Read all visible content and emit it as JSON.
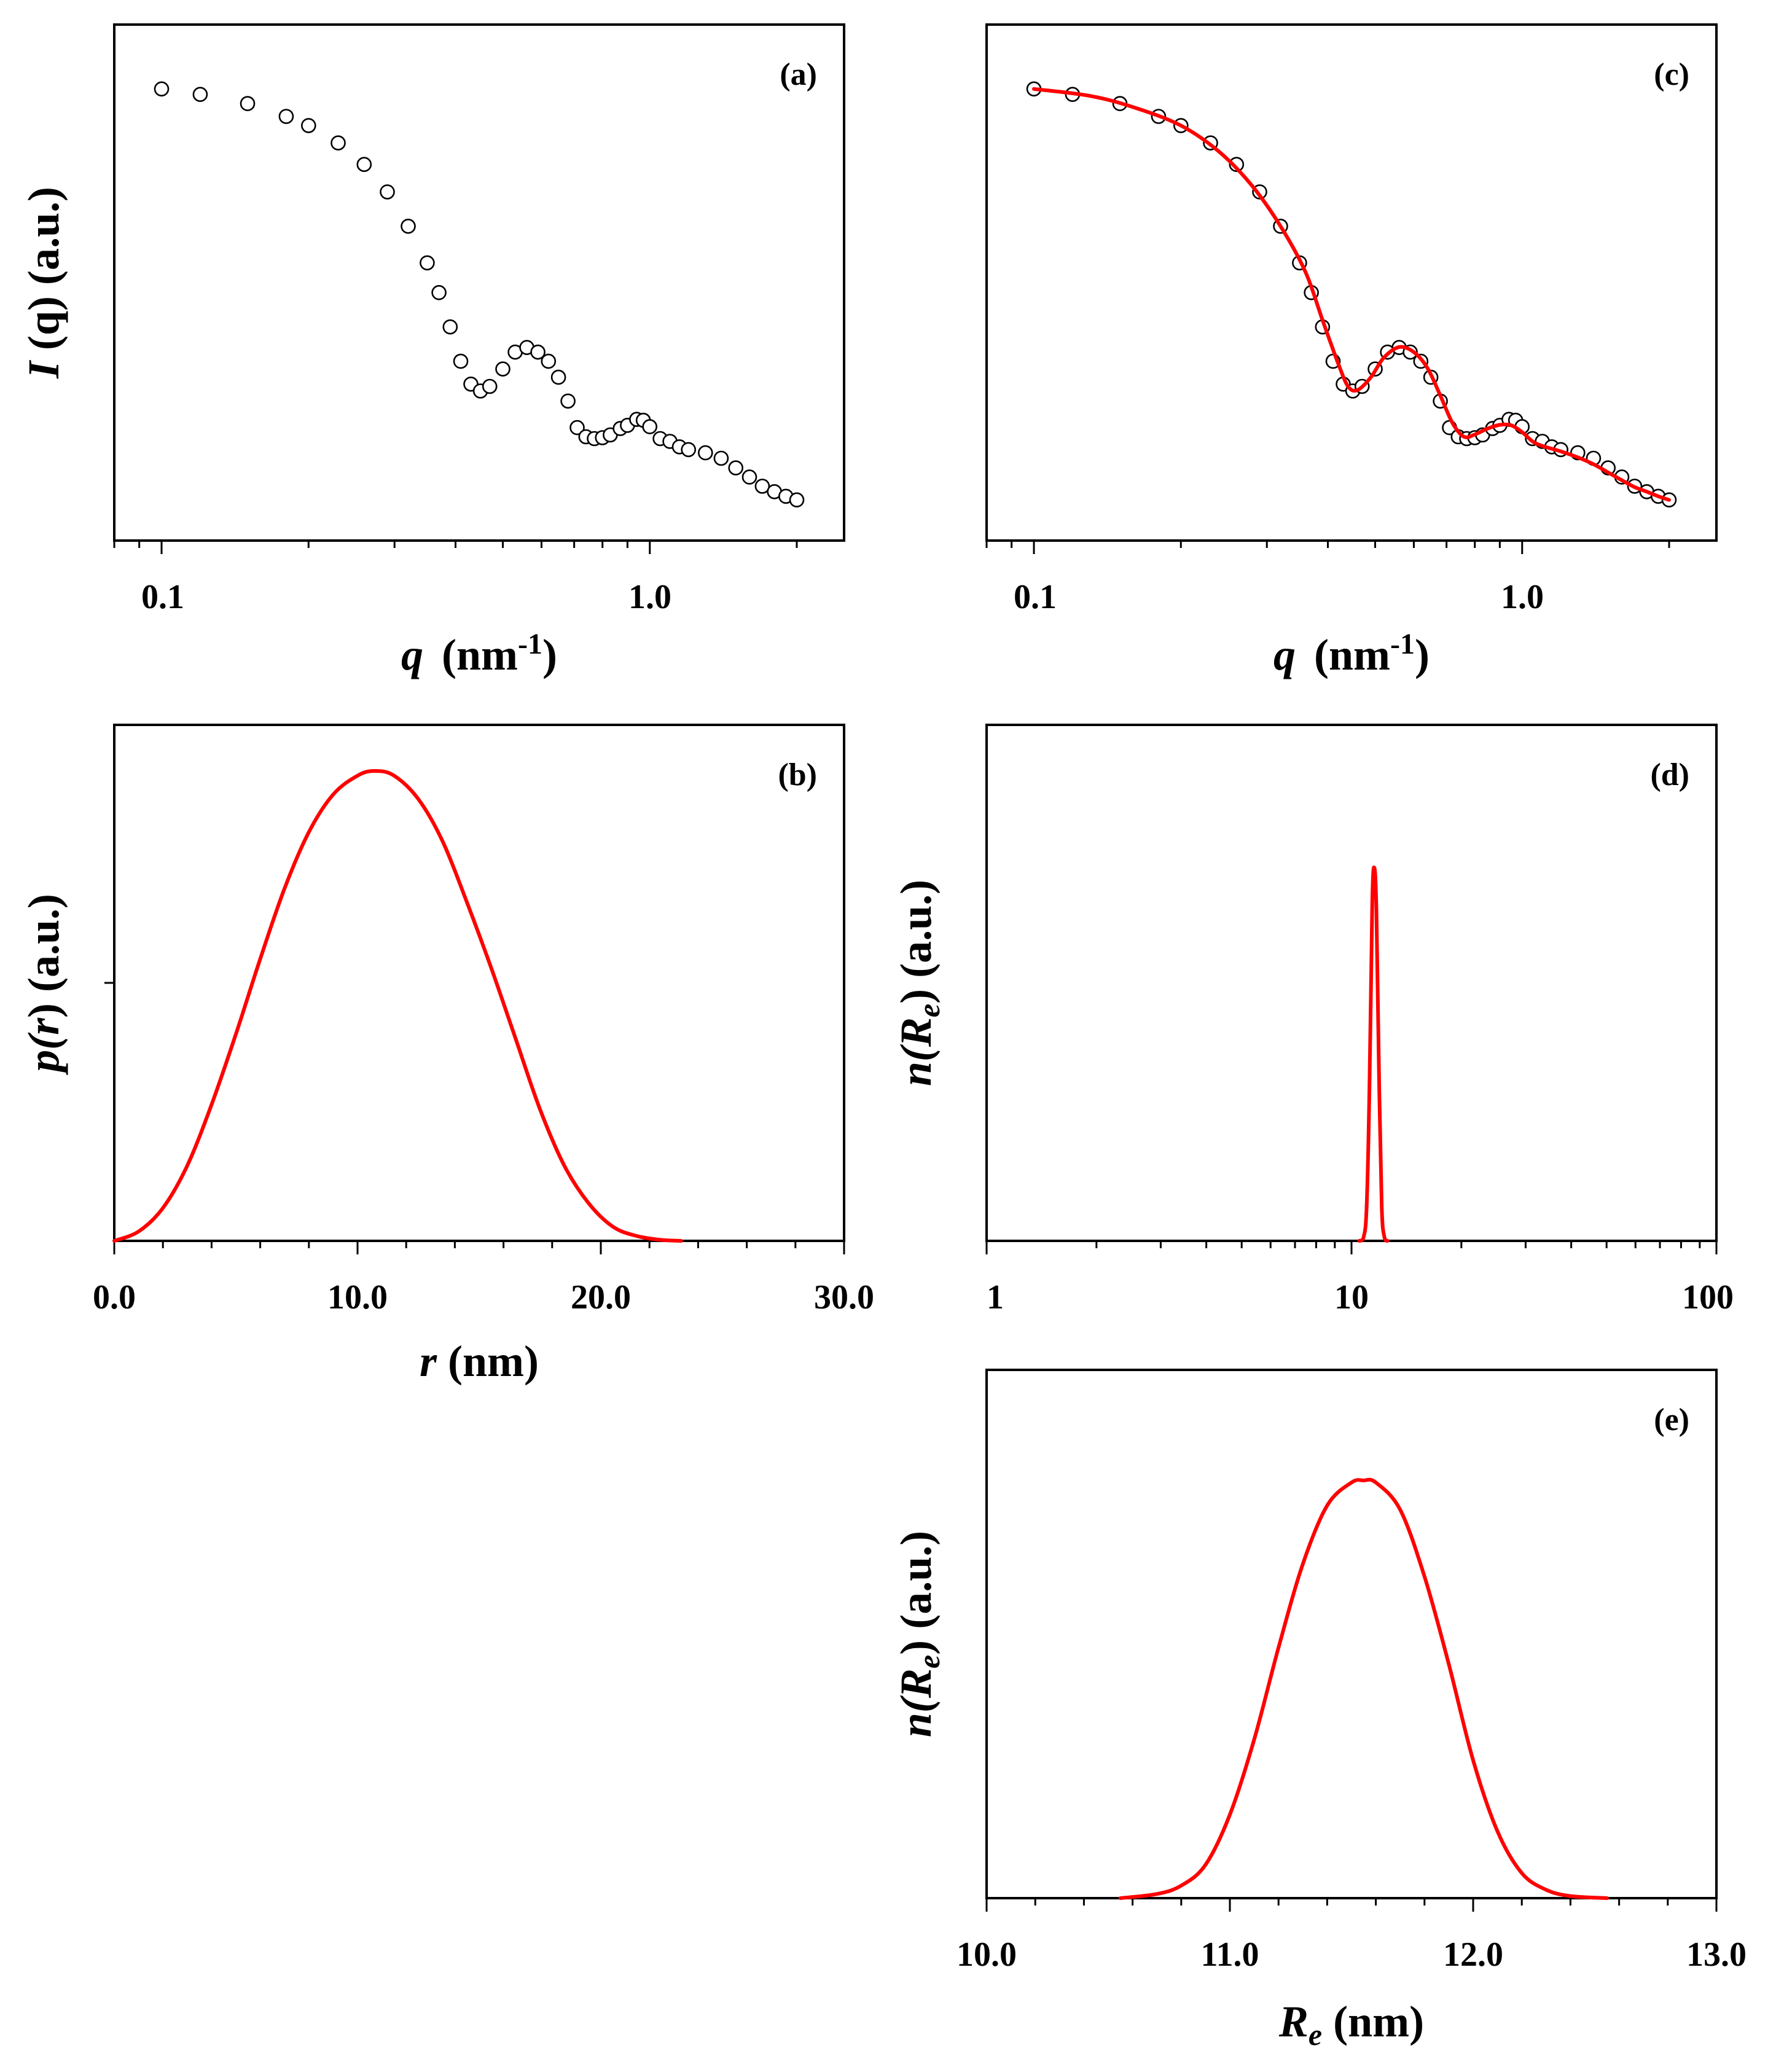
{
  "chart_data": [
    {
      "panel": "(a)",
      "type": "scatter",
      "x_scale": "log",
      "xlim": [
        0.08,
        2.5
      ],
      "ylim": [
        0,
        1
      ],
      "x_ticks_major": [
        0.1,
        1.0
      ],
      "x_tick_labels": [
        "0.1",
        "1.0"
      ],
      "xlabel": {
        "main": "q",
        "unit_open": "(nm",
        "unit_sup": "-1",
        "unit_close": ")"
      },
      "ylabel": {
        "main": "I",
        "rest": " (q)  (a.u.)"
      },
      "y_tick_labels": "none",
      "marker": "open-circle",
      "series": [
        {
          "x": [
            0.1,
            0.12,
            0.15,
            0.18,
            0.2,
            0.23,
            0.26,
            0.29,
            0.32,
            0.35,
            0.37,
            0.39,
            0.41,
            0.43,
            0.45,
            0.47,
            0.5,
            0.53,
            0.56,
            0.59,
            0.62,
            0.65,
            0.68,
            0.71,
            0.74,
            0.77,
            0.8,
            0.83,
            0.87,
            0.9,
            0.94,
            0.97,
            1.0,
            1.05,
            1.1,
            1.15,
            1.2,
            1.3,
            1.4,
            1.5,
            1.6,
            1.7,
            1.8,
            1.9,
            2.0
          ],
          "y": [
            0.96,
            0.948,
            0.928,
            0.9,
            0.88,
            0.842,
            0.795,
            0.735,
            0.66,
            0.58,
            0.515,
            0.44,
            0.365,
            0.315,
            0.3,
            0.31,
            0.348,
            0.385,
            0.395,
            0.385,
            0.365,
            0.33,
            0.278,
            0.22,
            0.2,
            0.196,
            0.198,
            0.204,
            0.218,
            0.225,
            0.238,
            0.236,
            0.222,
            0.196,
            0.19,
            0.178,
            0.172,
            0.165,
            0.153,
            0.132,
            0.112,
            0.092,
            0.08,
            0.07,
            0.062
          ]
        }
      ]
    },
    {
      "panel": "(c)",
      "type": "scatter",
      "x_scale": "log",
      "xlim": [
        0.08,
        2.5
      ],
      "ylim": [
        0,
        1
      ],
      "x_ticks_major": [
        0.1,
        1.0
      ],
      "x_tick_labels": [
        "0.1",
        "1.0"
      ],
      "xlabel": {
        "main": "q",
        "unit_open": "(nm",
        "unit_sup": "-1",
        "unit_close": ")"
      },
      "y_tick_labels": "none",
      "marker": "open-circle",
      "fit_color": "#ff0000",
      "series": [
        {
          "x": [
            0.1,
            0.12,
            0.15,
            0.18,
            0.2,
            0.23,
            0.26,
            0.29,
            0.32,
            0.35,
            0.37,
            0.39,
            0.41,
            0.43,
            0.45,
            0.47,
            0.5,
            0.53,
            0.56,
            0.59,
            0.62,
            0.65,
            0.68,
            0.71,
            0.74,
            0.77,
            0.8,
            0.83,
            0.87,
            0.9,
            0.94,
            0.97,
            1.0,
            1.05,
            1.1,
            1.15,
            1.2,
            1.3,
            1.4,
            1.5,
            1.6,
            1.7,
            1.8,
            1.9,
            2.0
          ],
          "y": [
            0.96,
            0.948,
            0.928,
            0.9,
            0.88,
            0.842,
            0.795,
            0.735,
            0.66,
            0.58,
            0.515,
            0.44,
            0.365,
            0.315,
            0.3,
            0.31,
            0.348,
            0.385,
            0.395,
            0.385,
            0.365,
            0.33,
            0.278,
            0.22,
            0.2,
            0.196,
            0.198,
            0.204,
            0.218,
            0.225,
            0.238,
            0.236,
            0.222,
            0.196,
            0.19,
            0.178,
            0.172,
            0.165,
            0.153,
            0.132,
            0.112,
            0.092,
            0.08,
            0.07,
            0.062
          ]
        },
        {
          "x": [
            0.1,
            0.13,
            0.16,
            0.2,
            0.24,
            0.28,
            0.32,
            0.36,
            0.39,
            0.42,
            0.44,
            0.46,
            0.49,
            0.52,
            0.56,
            0.6,
            0.64,
            0.68,
            0.72,
            0.76,
            0.8,
            0.85,
            0.9,
            0.95,
            1.0,
            1.05,
            1.1,
            1.2,
            1.3,
            1.4,
            1.5,
            1.6,
            1.7,
            1.8,
            1.9,
            2.0
          ],
          "y": [
            0.96,
            0.945,
            0.92,
            0.88,
            0.822,
            0.748,
            0.66,
            0.56,
            0.455,
            0.36,
            0.31,
            0.302,
            0.33,
            0.372,
            0.396,
            0.385,
            0.35,
            0.29,
            0.23,
            0.2,
            0.205,
            0.218,
            0.226,
            0.225,
            0.21,
            0.19,
            0.18,
            0.168,
            0.155,
            0.14,
            0.122,
            0.105,
            0.09,
            0.08,
            0.07,
            0.062
          ]
        }
      ]
    },
    {
      "panel": "(b)",
      "type": "line",
      "xlim": [
        0,
        30
      ],
      "ylim": [
        0,
        1
      ],
      "x_ticks_major": [
        0,
        10,
        20,
        30
      ],
      "x_tick_labels": [
        "0.0",
        "10.0",
        "20.0",
        "30.0"
      ],
      "xlabel": {
        "main": "r",
        "rest": " (nm)"
      },
      "ylabel": {
        "part1": "p(",
        "italic": "r",
        "part2": ") (a.u.)"
      },
      "y_tick_labels": "none",
      "line_color": "#ff0000",
      "series": [
        {
          "x": [
            0,
            1,
            2,
            3,
            4,
            5,
            6,
            7,
            8,
            9,
            10,
            10.7,
            11.5,
            12.5,
            13.5,
            14.5,
            15.5,
            16.5,
            17.5,
            18.5,
            19.5,
            20.5,
            21.5,
            22.5,
            23.3
          ],
          "y": [
            0.0,
            0.02,
            0.07,
            0.16,
            0.29,
            0.44,
            0.6,
            0.75,
            0.87,
            0.95,
            0.99,
            1.0,
            0.99,
            0.94,
            0.85,
            0.72,
            0.58,
            0.43,
            0.28,
            0.16,
            0.08,
            0.03,
            0.01,
            0.002,
            0.0
          ]
        }
      ]
    },
    {
      "panel": "(d)",
      "type": "line",
      "x_scale": "log",
      "xlim": [
        1,
        100
      ],
      "ylim": [
        0,
        1
      ],
      "x_ticks_major": [
        1,
        10,
        100
      ],
      "x_tick_labels": [
        "1",
        "10",
        "100"
      ],
      "ylabel": {
        "part1": "n(",
        "italic": "R",
        "sub": "e",
        "part2": ")  (a.u.)"
      },
      "y_tick_labels": "none",
      "line_color": "#ff0000",
      "series": [
        {
          "x": [
            10.5,
            10.8,
            11.0,
            11.2,
            11.4,
            11.55,
            11.7,
            11.9,
            12.1,
            12.3,
            12.55
          ],
          "y": [
            0.0,
            0.01,
            0.08,
            0.36,
            0.8,
            0.88,
            0.78,
            0.38,
            0.08,
            0.01,
            0.0
          ]
        }
      ]
    },
    {
      "panel": "(e)",
      "type": "line",
      "xlim": [
        10.0,
        13.0
      ],
      "ylim": [
        0,
        1
      ],
      "x_ticks_major": [
        10,
        11,
        12,
        13
      ],
      "x_tick_labels": [
        "10.0",
        "11.0",
        "12.0",
        "13.0"
      ],
      "xlabel": {
        "main": "R",
        "sub": "e",
        "rest": " (nm)"
      },
      "ylabel": {
        "part1": "n(",
        "italic": "R",
        "sub": "e",
        "part2": ")  (a.u.)"
      },
      "y_tick_labels": "none",
      "line_color": "#ff0000",
      "series": [
        {
          "x": [
            10.55,
            10.7,
            10.8,
            10.9,
            11.0,
            11.1,
            11.2,
            11.3,
            11.4,
            11.5,
            11.55,
            11.6,
            11.7,
            11.8,
            11.9,
            12.0,
            12.1,
            12.2,
            12.3,
            12.4,
            12.55
          ],
          "y": [
            0.0,
            0.01,
            0.03,
            0.08,
            0.2,
            0.38,
            0.6,
            0.8,
            0.94,
            0.995,
            1.0,
            0.995,
            0.93,
            0.77,
            0.56,
            0.33,
            0.16,
            0.06,
            0.02,
            0.005,
            0.0
          ]
        }
      ]
    }
  ]
}
